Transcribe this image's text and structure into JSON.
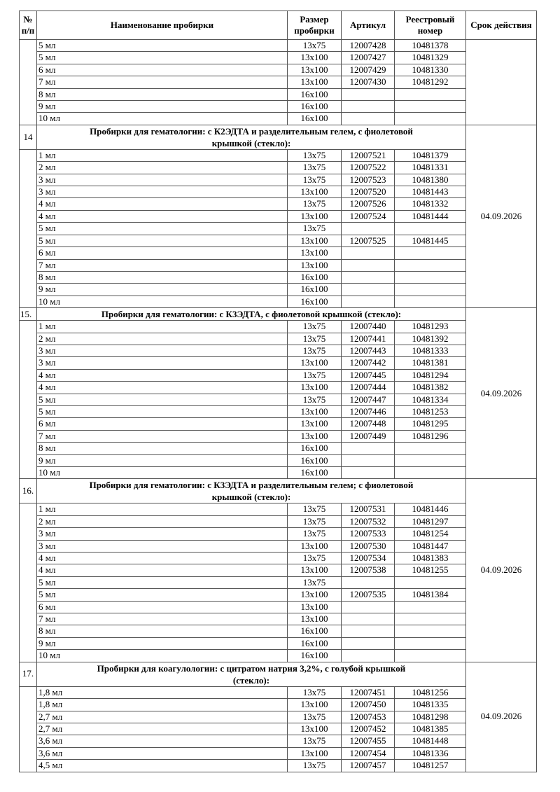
{
  "header": {
    "num": "№ п/п",
    "name": "Наименование пробирки",
    "size": "Размер пробирки",
    "article": "Артикул",
    "registry": "Реестровый номер",
    "expiry": "Срок действия"
  },
  "sections": [
    {
      "number": "",
      "title": null,
      "expiry": "",
      "rows": [
        {
          "name": "5 мл",
          "size": "13x75",
          "article": "12007428",
          "registry": "10481378"
        },
        {
          "name": "5 мл",
          "size": "13x100",
          "article": "12007427",
          "registry": "10481329"
        },
        {
          "name": "6 мл",
          "size": "13x100",
          "article": "12007429",
          "registry": "10481330"
        },
        {
          "name": "7 мл",
          "size": "13x100",
          "article": "12007430",
          "registry": "10481292"
        },
        {
          "name": "8 мл",
          "size": "16x100",
          "article": "",
          "registry": ""
        },
        {
          "name": "9 мл",
          "size": "16x100",
          "article": "",
          "registry": ""
        },
        {
          "name": "10 мл",
          "size": "16x100",
          "article": "",
          "registry": ""
        }
      ]
    },
    {
      "number": "14",
      "title": "Пробирки для гематологии: с К2ЭДТА и разделительным гелем, с фиолетовой крышкой (стекло):",
      "expiry": "04.09.2026",
      "rows": [
        {
          "name": "1 мл",
          "size": "13x75",
          "article": "12007521",
          "registry": "10481379"
        },
        {
          "name": "2 мл",
          "size": "13x75",
          "article": "12007522",
          "registry": "10481331"
        },
        {
          "name": "3 мл",
          "size": "13x75",
          "article": "12007523",
          "registry": "10481380"
        },
        {
          "name": "3 мл",
          "size": "13x100",
          "article": "12007520",
          "registry": "10481443"
        },
        {
          "name": "4 мл",
          "size": "13x75",
          "article": "12007526",
          "registry": "10481332"
        },
        {
          "name": "4 мл",
          "size": "13x100",
          "article": "12007524",
          "registry": "10481444"
        },
        {
          "name": "5 мл",
          "size": "13x75",
          "article": "",
          "registry": ""
        },
        {
          "name": "5 мл",
          "size": "13x100",
          "article": "12007525",
          "registry": "10481445"
        },
        {
          "name": "6 мл",
          "size": "13x100",
          "article": "",
          "registry": ""
        },
        {
          "name": "7 мл",
          "size": "13x100",
          "article": "",
          "registry": ""
        },
        {
          "name": "8 мл",
          "size": "16x100",
          "article": "",
          "registry": ""
        },
        {
          "name": "9 мл",
          "size": "16x100",
          "article": "",
          "registry": ""
        },
        {
          "name": "10 мл",
          "size": "16x100",
          "article": "",
          "registry": ""
        }
      ]
    },
    {
      "number": "15.",
      "title": "Пробирки для гематологии: с К3ЭДТА, с фиолетовой крышкой (стекло):",
      "expiry": "04.09.2026",
      "rows": [
        {
          "name": "1 мл",
          "size": "13x75",
          "article": "12007440",
          "registry": "10481293"
        },
        {
          "name": "2 мл",
          "size": "13x75",
          "article": "12007441",
          "registry": "10481392"
        },
        {
          "name": "3 мл",
          "size": "13x75",
          "article": "12007443",
          "registry": "10481333"
        },
        {
          "name": "3 мл",
          "size": "13x100",
          "article": "12007442",
          "registry": "10481381"
        },
        {
          "name": "4 мл",
          "size": "13x75",
          "article": "12007445",
          "registry": "10481294"
        },
        {
          "name": "4 мл",
          "size": "13x100",
          "article": "12007444",
          "registry": "10481382"
        },
        {
          "name": "5 мл",
          "size": "13x75",
          "article": "12007447",
          "registry": "10481334"
        },
        {
          "name": "5 мл",
          "size": "13x100",
          "article": "12007446",
          "registry": "10481253"
        },
        {
          "name": "6 мл",
          "size": "13x100",
          "article": "12007448",
          "registry": "10481295"
        },
        {
          "name": "7 мл",
          "size": "13x100",
          "article": "12007449",
          "registry": "10481296"
        },
        {
          "name": "8 мл",
          "size": "16x100",
          "article": "",
          "registry": ""
        },
        {
          "name": "9 мл",
          "size": "16x100",
          "article": "",
          "registry": ""
        },
        {
          "name": "10 мл",
          "size": "16x100",
          "article": "",
          "registry": ""
        }
      ]
    },
    {
      "number": "16.",
      "title": "Пробирки для гематологии: с К3ЭДТА и разделительным гелем; с фиолетовой крышкой (стекло):",
      "expiry": "04.09.2026",
      "rows": [
        {
          "name": "1 мл",
          "size": "13x75",
          "article": "12007531",
          "registry": "10481446"
        },
        {
          "name": "2 мл",
          "size": "13x75",
          "article": "12007532",
          "registry": "10481297"
        },
        {
          "name": "3 мл",
          "size": "13x75",
          "article": "12007533",
          "registry": "10481254"
        },
        {
          "name": "3 мл",
          "size": "13x100",
          "article": "12007530",
          "registry": "10481447"
        },
        {
          "name": "4 мл",
          "size": "13x75",
          "article": "12007534",
          "registry": "10481383"
        },
        {
          "name": "4 мл",
          "size": "13x100",
          "article": "12007538",
          "registry": "10481255"
        },
        {
          "name": "5 мл",
          "size": "13x75",
          "article": "",
          "registry": ""
        },
        {
          "name": "5 мл",
          "size": "13x100",
          "article": "12007535",
          "registry": "10481384"
        },
        {
          "name": "6 мл",
          "size": "13x100",
          "article": "",
          "registry": ""
        },
        {
          "name": "7 мл",
          "size": "13x100",
          "article": "",
          "registry": ""
        },
        {
          "name": "8 мл",
          "size": "16x100",
          "article": "",
          "registry": ""
        },
        {
          "name": "9 мл",
          "size": "16x100",
          "article": "",
          "registry": ""
        },
        {
          "name": "10 мл",
          "size": "16x100",
          "article": "",
          "registry": ""
        }
      ]
    },
    {
      "number": "17.",
      "title": "Пробирки для коагулологии: с цитратом натрия 3,2%, с голубой крышкой (стекло):",
      "expiry": "04.09.2026",
      "rows": [
        {
          "name": "1,8 мл",
          "size": "13x75",
          "article": "12007451",
          "registry": "10481256"
        },
        {
          "name": "1,8 мл",
          "size": "13x100",
          "article": "12007450",
          "registry": "10481335"
        },
        {
          "name": "2,7 мл",
          "size": "13x75",
          "article": "12007453",
          "registry": "10481298"
        },
        {
          "name": "2,7 мл",
          "size": "13x100",
          "article": "12007452",
          "registry": "10481385"
        },
        {
          "name": "3,6 мл",
          "size": "13x75",
          "article": "12007455",
          "registry": "10481448"
        },
        {
          "name": "3,6 мл",
          "size": "13x100",
          "article": "12007454",
          "registry": "10481336"
        },
        {
          "name": "4,5 мл",
          "size": "13x75",
          "article": "12007457",
          "registry": "10481257"
        }
      ]
    }
  ]
}
